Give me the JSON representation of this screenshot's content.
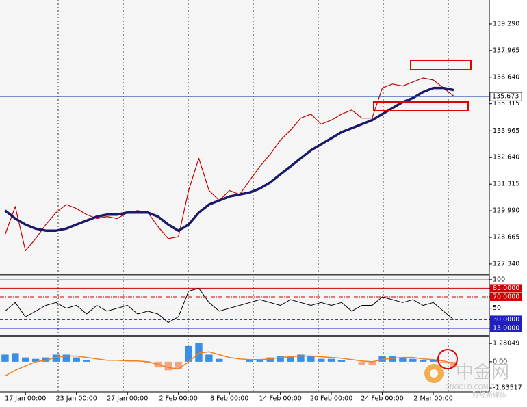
{
  "chart_data": [
    {
      "type": "line",
      "categories": [
        null,
        null,
        "17 Jan 00:00",
        null,
        null,
        null,
        null,
        "23 Jan 00:00",
        null,
        null,
        null,
        null,
        "27 Jan 00:00",
        null,
        null,
        null,
        null,
        "2 Feb 00:00",
        null,
        null,
        null,
        null,
        "8 Feb 00:00",
        null,
        null,
        null,
        null,
        "14 Feb 00:00",
        null,
        null,
        null,
        null,
        "20 Feb 00:00",
        null,
        null,
        null,
        null,
        "24 Feb 00:00",
        null,
        null,
        null,
        null,
        "2 Mar 00:00",
        null,
        null,
        null,
        null,
        null
      ],
      "series": [
        {
          "color": "#c00000",
          "width": 1.2,
          "values": [
            128.8,
            130.2,
            128.0,
            128.6,
            129.3,
            129.9,
            130.3,
            130.1,
            129.8,
            129.6,
            129.7,
            129.6,
            129.9,
            130.0,
            129.9,
            129.2,
            128.6,
            128.7,
            131.0,
            132.6,
            131.0,
            130.5,
            131.0,
            130.8,
            131.5,
            132.2,
            132.8,
            133.5,
            134.0,
            134.6,
            134.8,
            134.3,
            134.5,
            134.8,
            135.0,
            134.6,
            134.6,
            136.1,
            136.3,
            136.2,
            136.4,
            136.6,
            136.5,
            136.1,
            135.7,
            null,
            null,
            null
          ]
        },
        {
          "color": "#1a1a66",
          "width": 3.5,
          "values": [
            130.0,
            129.6,
            129.3,
            129.1,
            129.0,
            129.0,
            129.1,
            129.3,
            129.5,
            129.7,
            129.8,
            129.8,
            129.9,
            129.9,
            129.9,
            129.7,
            129.3,
            129.0,
            129.3,
            129.9,
            130.3,
            130.5,
            130.7,
            130.8,
            130.9,
            131.1,
            131.4,
            131.8,
            132.2,
            132.6,
            133.0,
            133.3,
            133.6,
            133.9,
            134.1,
            134.3,
            134.5,
            134.8,
            135.1,
            135.4,
            135.6,
            135.9,
            136.1,
            136.1,
            136.0,
            null,
            null,
            null
          ]
        }
      ],
      "ylim": [
        126.86,
        140.48
      ],
      "yticks": [
        {
          "value": 139.29,
          "label": "139.290"
        },
        {
          "value": 137.965,
          "label": "137.965"
        },
        {
          "value": 136.64,
          "label": "136.640"
        },
        {
          "value": 135.315,
          "label": "135.315"
        },
        {
          "value": 133.965,
          "label": "133.965"
        },
        {
          "value": 132.64,
          "label": "132.640"
        },
        {
          "value": 131.315,
          "label": "131.315"
        },
        {
          "value": 129.99,
          "label": "129.990"
        },
        {
          "value": 128.665,
          "label": "128.665"
        },
        {
          "value": 127.34,
          "label": "127.340"
        }
      ],
      "last_price": 135.673,
      "last_price_color": "#3050b0"
    },
    {
      "type": "line",
      "series": [
        {
          "color": "#000000",
          "width": 1,
          "values": [
            45,
            60,
            35,
            45,
            55,
            60,
            50,
            55,
            40,
            55,
            45,
            50,
            55,
            40,
            45,
            40,
            25,
            35,
            80,
            85,
            60,
            45,
            50,
            55,
            60,
            65,
            60,
            55,
            65,
            60,
            55,
            60,
            55,
            60,
            45,
            55,
            55,
            70,
            65,
            60,
            65,
            55,
            60,
            45,
            30,
            null,
            null,
            null
          ]
        }
      ],
      "ylim": [
        3,
        107
      ],
      "yticks": [
        100,
        {
          "value": 85,
          "label": "85.0000"
        },
        {
          "value": 70,
          "label": "70.0000"
        },
        50,
        {
          "value": 30,
          "label": "30.0000"
        },
        {
          "value": 15,
          "label": "15.0000"
        }
      ],
      "level_colors": [
        "#888888",
        "#d00000",
        "#d00000",
        "#888888",
        "#2020c0",
        "#2020c0"
      ]
    },
    {
      "type": "bar",
      "values": [
        0.5,
        0.6,
        0.3,
        0.2,
        0.3,
        0.5,
        0.5,
        0.3,
        0.1,
        0.0,
        0.0,
        0.0,
        0.0,
        0.0,
        -0.1,
        -0.4,
        -0.6,
        -0.5,
        1.1,
        1.3,
        0.5,
        0.2,
        0.0,
        0.0,
        0.1,
        0.1,
        0.3,
        0.4,
        0.4,
        0.5,
        0.4,
        0.2,
        0.2,
        0.1,
        0.0,
        -0.2,
        -0.2,
        0.4,
        0.4,
        0.3,
        0.2,
        0.1,
        0.1,
        -0.1,
        -0.4,
        null,
        null,
        null
      ],
      "positive_color": "#3a8ee6",
      "negative_color": "#f4a582",
      "series": [
        {
          "color": "#f08020",
          "width": 1.5,
          "values": [
            -1.0,
            -0.6,
            -0.3,
            0.0,
            0.1,
            0.3,
            0.4,
            0.4,
            0.3,
            0.2,
            0.1,
            0.1,
            0.05,
            0.05,
            0.0,
            -0.2,
            -0.4,
            -0.5,
            0.0,
            0.6,
            0.7,
            0.5,
            0.3,
            0.2,
            0.15,
            0.15,
            0.2,
            0.3,
            0.35,
            0.4,
            0.4,
            0.35,
            0.3,
            0.25,
            0.15,
            0.05,
            0.0,
            0.15,
            0.25,
            0.3,
            0.3,
            0.2,
            0.15,
            0.05,
            -0.1,
            null,
            null,
            null
          ]
        }
      ],
      "ylim": [
        -2.07,
        1.77
      ],
      "yticks": [
        1.28049,
        {
          "value": 0,
          "label": "0.00"
        },
        -1.83517
      ]
    }
  ],
  "watermark": {
    "text": "中金网",
    "sub": "CNGOLD.COM.CN",
    "tag": "财经新媒体"
  }
}
